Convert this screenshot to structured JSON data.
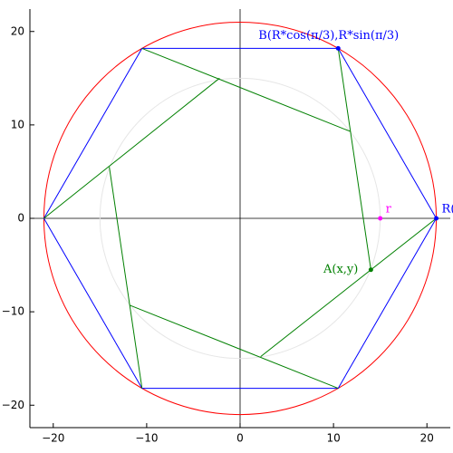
{
  "chart_data": {
    "type": "geometry",
    "xlim": [
      -22.5,
      22.5
    ],
    "ylim": [
      -22.4,
      22.4
    ],
    "xticks": [
      {
        "value": -20,
        "label": "−20"
      },
      {
        "value": -10,
        "label": "−10"
      },
      0,
      10,
      20
    ],
    "yticks": [
      {
        "value": -20,
        "label": "−20"
      },
      {
        "value": -10,
        "label": "−10"
      },
      0,
      10,
      20
    ],
    "circles": [
      {
        "color": "#ff0000",
        "cx": 0,
        "cy": 0,
        "r": 21
      },
      {
        "color": "#e6e6e6",
        "cx": 0,
        "cy": 0,
        "r": 15
      }
    ],
    "polygon": {
      "color": "#0000ff",
      "x": [
        21,
        10.5,
        -10.5,
        -21,
        -10.5,
        10.5
      ],
      "y": [
        0,
        18.19,
        18.19,
        0,
        -18.19,
        -18.19
      ]
    },
    "segments": {
      "color": "#008000",
      "lines": [
        {
          "x": [
            -21,
            -2.2
          ],
          "y": [
            0,
            15
          ]
        },
        {
          "x": [
            -10.5,
            11.8
          ],
          "y": [
            18.19,
            9.3
          ]
        },
        {
          "x": [
            10.5,
            14
          ],
          "y": [
            18.19,
            -5.5
          ]
        },
        {
          "x": [
            21,
            2.2
          ],
          "y": [
            0,
            -14.8
          ]
        },
        {
          "x": [
            10.5,
            -11.8
          ],
          "y": [
            -18.19,
            -9.3
          ]
        },
        {
          "x": [
            -10.5,
            -14
          ],
          "y": [
            -18.19,
            5.5
          ]
        }
      ]
    },
    "points": [
      {
        "label": "B(R*cos(π/3),R*sin(π/3)",
        "x": 10.5,
        "y": 18.19,
        "color": "#0000ff",
        "anchor": "above"
      },
      {
        "label": "R(",
        "x": 21,
        "y": 0,
        "color": "#0000ff",
        "anchor": "right"
      },
      {
        "label": "A(x,y)",
        "x": 14,
        "y": -5.5,
        "color": "#008000",
        "anchor": "left"
      },
      {
        "label": "r",
        "x": 15,
        "y": 0,
        "color": "#ff00ff",
        "anchor": "right"
      }
    ]
  }
}
